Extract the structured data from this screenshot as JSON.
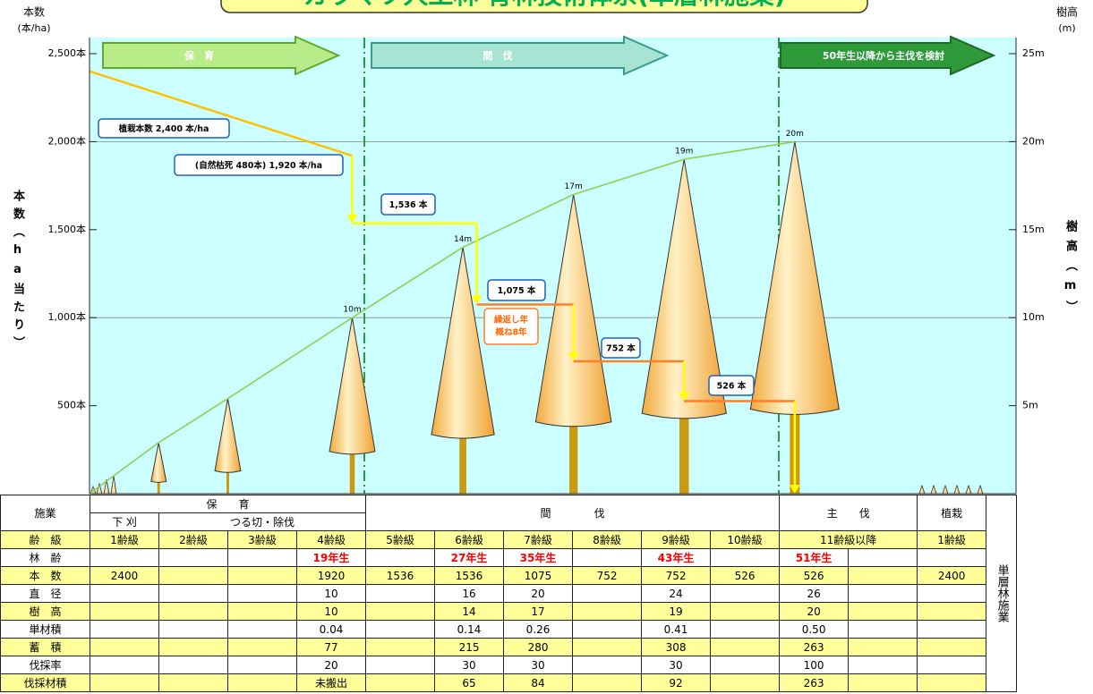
{
  "chart_data": {
    "type": "line",
    "title": "カラマツ人工林 育林技術体系(単層林施業)",
    "y_label_top": "本数",
    "y_unit": "(本/ha)",
    "y_label": "本数（ha当たり）",
    "y2_label_top": "樹高",
    "y2_unit": "(m)",
    "y2_label": "樹高（m）",
    "xlim": [
      0,
      67
    ],
    "ylim": [
      0,
      2500
    ],
    "yticks": [
      {
        "value": 500,
        "label": "500本"
      },
      {
        "value": 1000,
        "label": "1,000本"
      },
      {
        "value": 1500,
        "label": "1,500本"
      },
      {
        "value": 2000,
        "label": "2,000本"
      },
      {
        "value": 2500,
        "label": "2,500本"
      }
    ],
    "y2lim": [
      0,
      25
    ],
    "y2ticks": [
      {
        "value": 5,
        "label": "5m"
      },
      {
        "value": 10,
        "label": "10m"
      },
      {
        "value": 15,
        "label": "15m"
      },
      {
        "value": 20,
        "label": "20m"
      },
      {
        "value": 25,
        "label": "25m"
      }
    ],
    "grid_y": [
      1000,
      2000
    ],
    "phases": [
      "保　育",
      "間　伐",
      "50年生以降から主伐を検討"
    ],
    "callouts": [
      "植栽本数 2,400 本/ha",
      "(自然枯死 480本) 1,920 本/ha",
      "1,536 本",
      "1,075 本",
      "752 本",
      "526 本"
    ],
    "note": [
      "繰返し年",
      "概ね8年"
    ],
    "series": [
      {
        "x": [
          0,
          19,
          19,
          28,
          28,
          35,
          35,
          43,
          43,
          51,
          51
        ],
        "values": [
          2400,
          1920,
          1536,
          1536,
          1075,
          1075,
          752,
          752,
          526,
          526,
          0
        ],
        "segment_colors": [
          "#ffc000",
          "#ffff00",
          "#ffff00",
          "#ffff00",
          "#ff7f27",
          "#ffff00",
          "#ff7f27",
          "#ffff00",
          "#ff7f27",
          "#ffff00"
        ]
      },
      {
        "axis": "y2",
        "color": "#92d050",
        "x": [
          0,
          5,
          10,
          19,
          27,
          35,
          43,
          51
        ],
        "values": [
          0,
          2.9,
          5.4,
          10,
          14,
          17,
          19,
          20
        ],
        "value_labels": [
          null,
          null,
          null,
          "10m",
          "14m",
          "17m",
          "19m",
          "20m"
        ]
      }
    ]
  },
  "table": {
    "header": {
      "operation": "施業",
      "tending": "保　　育",
      "weeding": "下 刈",
      "cleaning": "つる切・除伐",
      "thinning": "間　　　　伐",
      "final": "主　　伐",
      "planting": "植栽"
    },
    "side_label": "単層林施業",
    "rows": [
      {
        "label": "齢　級",
        "cells": [
          "1齢級",
          "2齢級",
          "3齢級",
          "4齢級",
          "5齢級",
          "6齢級",
          "7齢級",
          "8齢級",
          "9齢級",
          "10齢級",
          "11齢級以降",
          "1齢級"
        ]
      },
      {
        "label": "林　齢",
        "cells": [
          "19年生",
          "27年生",
          "35年生",
          "43年生",
          "51年生"
        ]
      },
      {
        "label": "本　数",
        "cells": [
          "2400",
          "1920",
          "1536",
          "1536",
          "1075",
          "752",
          "752",
          "526",
          "526",
          "2400"
        ]
      },
      {
        "label": "直　径",
        "cells": [
          "10",
          "16",
          "20",
          "24",
          "26"
        ]
      },
      {
        "label": "樹　高",
        "cells": [
          "10",
          "14",
          "17",
          "19",
          "20"
        ]
      },
      {
        "label": "単材積",
        "cells": [
          "0.04",
          "0.14",
          "0.26",
          "0.41",
          "0.50"
        ]
      },
      {
        "label": "蓄　積",
        "cells": [
          "77",
          "215",
          "280",
          "308",
          "263"
        ]
      },
      {
        "label": "伐採率",
        "cells": [
          "20",
          "30",
          "30",
          "30",
          "100"
        ]
      },
      {
        "label": "伐採材積",
        "cells": [
          "未搬出",
          "65",
          "84",
          "92",
          "263"
        ]
      }
    ]
  }
}
